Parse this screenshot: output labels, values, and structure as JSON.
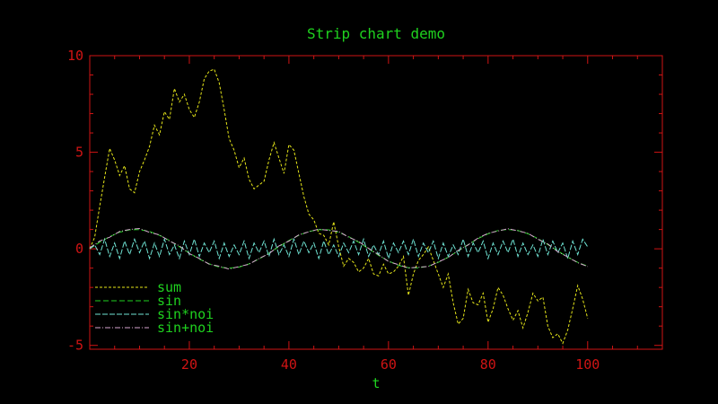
{
  "colors": {
    "background": "#000000",
    "axis": "#d01414",
    "title": "#1fd21f",
    "tick_label": "#d01414",
    "xlabel": "#1fd21f",
    "legend_text": "#1fd21f",
    "legend_box": "#1fd21f"
  },
  "chart_data": {
    "type": "line",
    "title": "Strip chart demo",
    "xlabel": "t",
    "ylabel": "",
    "xlim": [
      0,
      115
    ],
    "ylim": [
      -5.2,
      10
    ],
    "xticks": [
      20,
      40,
      60,
      80,
      100
    ],
    "yticks": [
      -5,
      0,
      5,
      10
    ],
    "grid": false,
    "legend_position": "bottom-left",
    "series": [
      {
        "name": "sum",
        "color": "#e6e619",
        "dash": "3,2",
        "x": [
          0,
          1,
          2,
          3,
          4,
          5,
          6,
          7,
          8,
          9,
          10,
          11,
          12,
          13,
          14,
          15,
          16,
          17,
          18,
          19,
          20,
          21,
          22,
          23,
          24,
          25,
          26,
          27,
          28,
          29,
          30,
          31,
          32,
          33,
          34,
          35,
          36,
          37,
          38,
          39,
          40,
          41,
          42,
          43,
          44,
          45,
          46,
          47,
          48,
          49,
          50,
          51,
          52,
          53,
          54,
          55,
          56,
          57,
          58,
          59,
          60,
          61,
          62,
          63,
          64,
          65,
          66,
          67,
          68,
          69,
          70,
          71,
          72,
          73,
          74,
          75,
          76,
          77,
          78,
          79,
          80,
          81,
          82,
          83,
          84,
          85,
          86,
          87,
          88,
          89,
          90,
          91,
          92,
          93,
          94,
          95,
          96,
          97,
          98,
          99,
          100
        ],
        "values": [
          0.0,
          0.6,
          2.2,
          3.7,
          5.2,
          4.6,
          3.8,
          4.3,
          3.1,
          2.9,
          4.0,
          4.6,
          5.3,
          6.4,
          5.9,
          7.1,
          6.7,
          8.3,
          7.6,
          8.0,
          7.2,
          6.8,
          7.6,
          8.8,
          9.2,
          9.3,
          8.6,
          7.2,
          5.7,
          5.1,
          4.2,
          4.7,
          3.6,
          3.1,
          3.3,
          3.5,
          4.6,
          5.5,
          4.7,
          3.9,
          5.4,
          5.1,
          3.9,
          2.7,
          1.8,
          1.5,
          0.8,
          0.7,
          0.2,
          1.4,
          0.1,
          -0.9,
          -0.5,
          -0.7,
          -1.2,
          -1.0,
          -0.5,
          -1.3,
          -1.4,
          -0.8,
          -1.3,
          -1.2,
          -0.9,
          -0.4,
          -2.4,
          -1.3,
          -0.6,
          -0.3,
          0.1,
          -0.6,
          -1.3,
          -2.0,
          -1.3,
          -2.8,
          -3.9,
          -3.6,
          -2.1,
          -2.8,
          -2.9,
          -2.3,
          -3.8,
          -3.1,
          -2.0,
          -2.4,
          -3.1,
          -3.7,
          -3.2,
          -4.1,
          -3.3,
          -2.3,
          -2.7,
          -2.5,
          -4.0,
          -4.6,
          -4.4,
          -4.9,
          -4.2,
          -3.1,
          -1.9,
          -2.6,
          -3.6
        ]
      },
      {
        "name": "sin",
        "color": "#1fd21f",
        "dash": "6,3",
        "x": [
          0,
          2,
          4,
          6,
          8,
          10,
          12,
          14,
          16,
          18,
          20,
          22,
          24,
          26,
          28,
          30,
          32,
          34,
          36,
          38,
          40,
          42,
          44,
          46,
          48,
          50,
          52,
          54,
          56,
          58,
          60,
          62,
          64,
          66,
          68,
          70,
          72,
          74,
          76,
          78,
          80,
          82,
          84,
          86,
          88,
          90,
          92,
          94,
          96,
          98,
          100
        ],
        "values": [
          0.0,
          0.34,
          0.63,
          0.86,
          0.98,
          0.99,
          0.9,
          0.7,
          0.43,
          0.11,
          -0.22,
          -0.53,
          -0.78,
          -0.95,
          -1.0,
          -0.95,
          -0.78,
          -0.53,
          -0.22,
          0.11,
          0.43,
          0.7,
          0.9,
          0.99,
          0.98,
          0.86,
          0.63,
          0.34,
          0.0,
          -0.34,
          -0.63,
          -0.86,
          -0.98,
          -0.99,
          -0.9,
          -0.7,
          -0.43,
          -0.11,
          0.22,
          0.53,
          0.78,
          0.95,
          1.0,
          0.95,
          0.78,
          0.53,
          0.22,
          -0.11,
          -0.43,
          -0.7,
          -0.9
        ]
      },
      {
        "name": "sin*noi",
        "color": "#6fe3d3",
        "dash": "6,2",
        "x": [
          0,
          1,
          2,
          3,
          4,
          5,
          6,
          7,
          8,
          9,
          10,
          11,
          12,
          13,
          14,
          15,
          16,
          17,
          18,
          19,
          20,
          21,
          22,
          23,
          24,
          25,
          26,
          27,
          28,
          29,
          30,
          31,
          32,
          33,
          34,
          35,
          36,
          37,
          38,
          39,
          40,
          41,
          42,
          43,
          44,
          45,
          46,
          47,
          48,
          49,
          50,
          51,
          52,
          53,
          54,
          55,
          56,
          57,
          58,
          59,
          60,
          61,
          62,
          63,
          64,
          65,
          66,
          67,
          68,
          69,
          70,
          71,
          72,
          73,
          74,
          75,
          76,
          77,
          78,
          79,
          80,
          81,
          82,
          83,
          84,
          85,
          86,
          87,
          88,
          89,
          90,
          91,
          92,
          93,
          94,
          95,
          96,
          97,
          98,
          99,
          100
        ],
        "values": [
          0.0,
          0.2,
          -0.3,
          0.5,
          -0.4,
          0.3,
          -0.5,
          0.4,
          -0.3,
          0.5,
          -0.2,
          0.4,
          -0.5,
          0.3,
          -0.4,
          0.5,
          -0.3,
          0.2,
          -0.5,
          0.4,
          -0.3,
          0.5,
          -0.4,
          0.3,
          -0.2,
          0.4,
          -0.5,
          0.3,
          -0.4,
          0.2,
          -0.3,
          0.4,
          -0.5,
          0.3,
          -0.2,
          0.4,
          -0.4,
          0.5,
          -0.3,
          0.2,
          -0.4,
          0.5,
          -0.3,
          0.4,
          -0.2,
          0.3,
          -0.5,
          0.4,
          -0.3,
          0.2,
          -0.4,
          0.3,
          -0.2,
          0.4,
          -0.3,
          0.5,
          -0.4,
          0.2,
          -0.3,
          0.4,
          -0.5,
          0.3,
          -0.2,
          0.4,
          -0.3,
          0.5,
          -0.4,
          0.3,
          -0.2,
          0.4,
          -0.5,
          0.3,
          -0.4,
          0.2,
          -0.3,
          0.5,
          -0.4,
          0.3,
          -0.2,
          0.4,
          -0.5,
          0.3,
          -0.3,
          0.4,
          -0.2,
          0.5,
          -0.4,
          0.3,
          -0.3,
          0.2,
          -0.4,
          0.5,
          -0.3,
          0.4,
          -0.2,
          0.3,
          -0.5,
          0.4,
          -0.3,
          0.5,
          0.1
        ]
      },
      {
        "name": "sin+noi",
        "color": "#d7a6cf",
        "dash": "6,2,1,2",
        "x": [
          0,
          2,
          4,
          6,
          8,
          10,
          12,
          14,
          16,
          18,
          20,
          22,
          24,
          26,
          28,
          30,
          32,
          34,
          36,
          38,
          40,
          42,
          44,
          46,
          48,
          50,
          52,
          54,
          56,
          58,
          60,
          62,
          64,
          66,
          68,
          70,
          72,
          74,
          76,
          78,
          80,
          82,
          84,
          86,
          88,
          90,
          92,
          94,
          96,
          98,
          100
        ],
        "values": [
          0.05,
          0.4,
          0.6,
          0.9,
          1.0,
          1.05,
          0.85,
          0.72,
          0.4,
          0.15,
          -0.25,
          -0.5,
          -0.8,
          -0.9,
          -1.05,
          -0.92,
          -0.8,
          -0.5,
          -0.25,
          0.15,
          0.4,
          0.72,
          0.88,
          1.02,
          0.95,
          0.9,
          0.6,
          0.38,
          0.02,
          -0.3,
          -0.66,
          -0.82,
          -1.0,
          -0.95,
          -0.92,
          -0.68,
          -0.45,
          -0.08,
          0.2,
          0.56,
          0.8,
          0.92,
          1.04,
          0.93,
          0.8,
          0.5,
          0.25,
          -0.15,
          -0.42,
          -0.72,
          -0.92
        ]
      }
    ]
  }
}
